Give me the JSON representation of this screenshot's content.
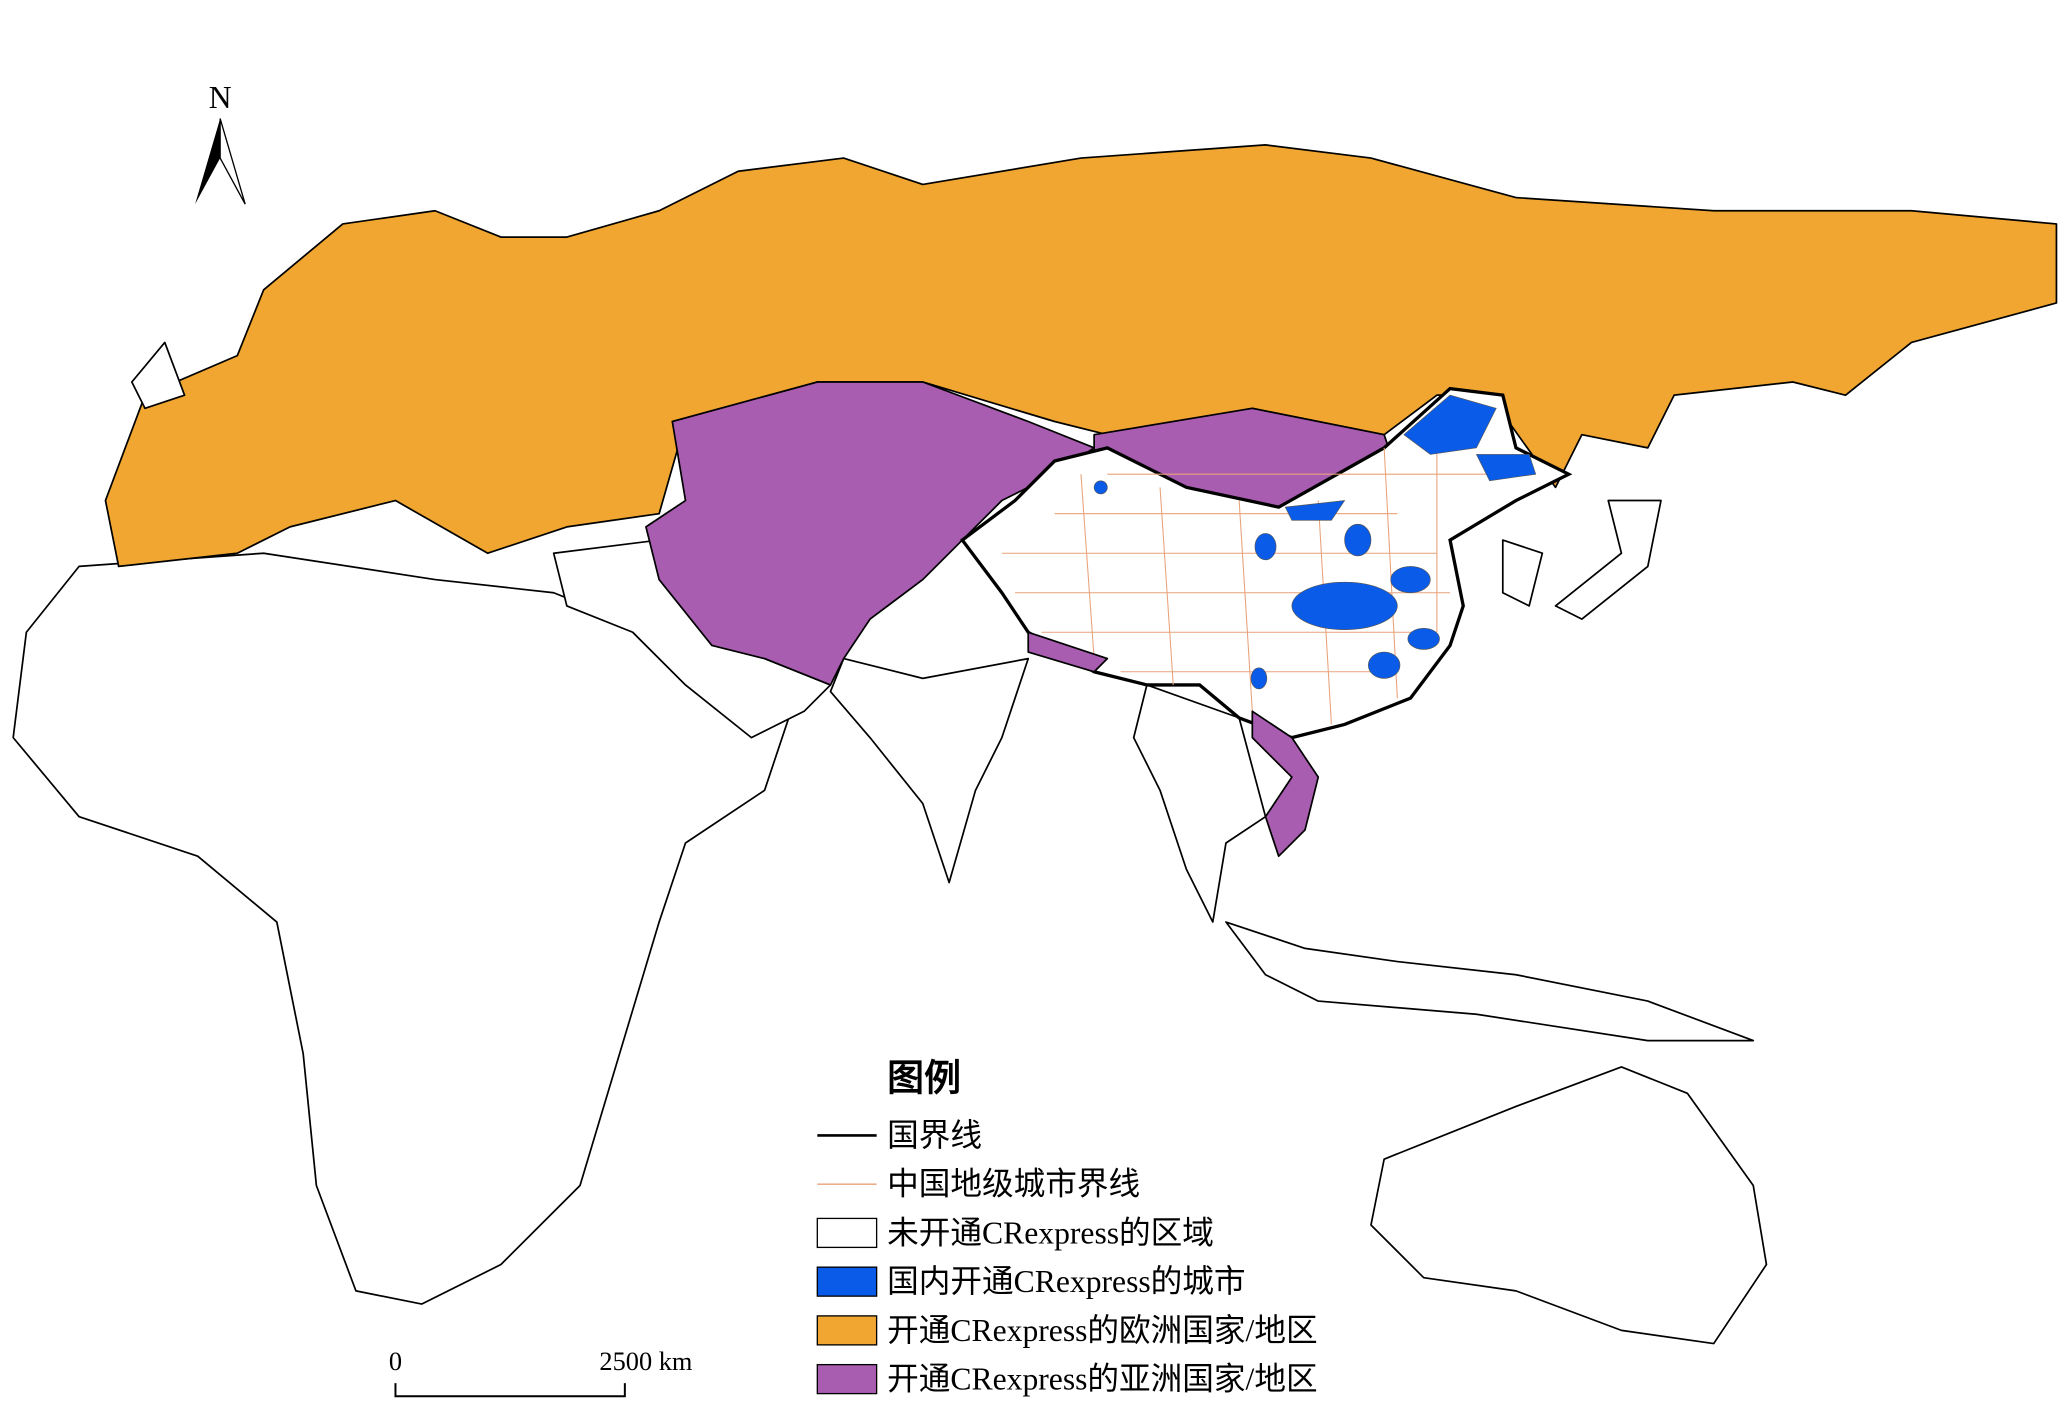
{
  "north": "N",
  "legend": {
    "title": "图例",
    "items": [
      {
        "label": "国界线",
        "symbol": "line",
        "color": "#000000"
      },
      {
        "label": "中国地级城市界线",
        "symbol": "line",
        "color": "#e8a27a"
      },
      {
        "label": "未开通CRexpress的区域",
        "symbol": "box",
        "color": "#ffffff"
      },
      {
        "label": "国内开通CRexpress的城市",
        "symbol": "box",
        "color": "#0a5ce8"
      },
      {
        "label": "开通CRexpress的欧洲国家/地区",
        "symbol": "box",
        "color": "#f0a630"
      },
      {
        "label": "开通CRexpress的亚洲国家/地区",
        "symbol": "box",
        "color": "#a85db0"
      }
    ]
  },
  "scale_bar": {
    "start": "0",
    "end": "2500 km"
  }
}
